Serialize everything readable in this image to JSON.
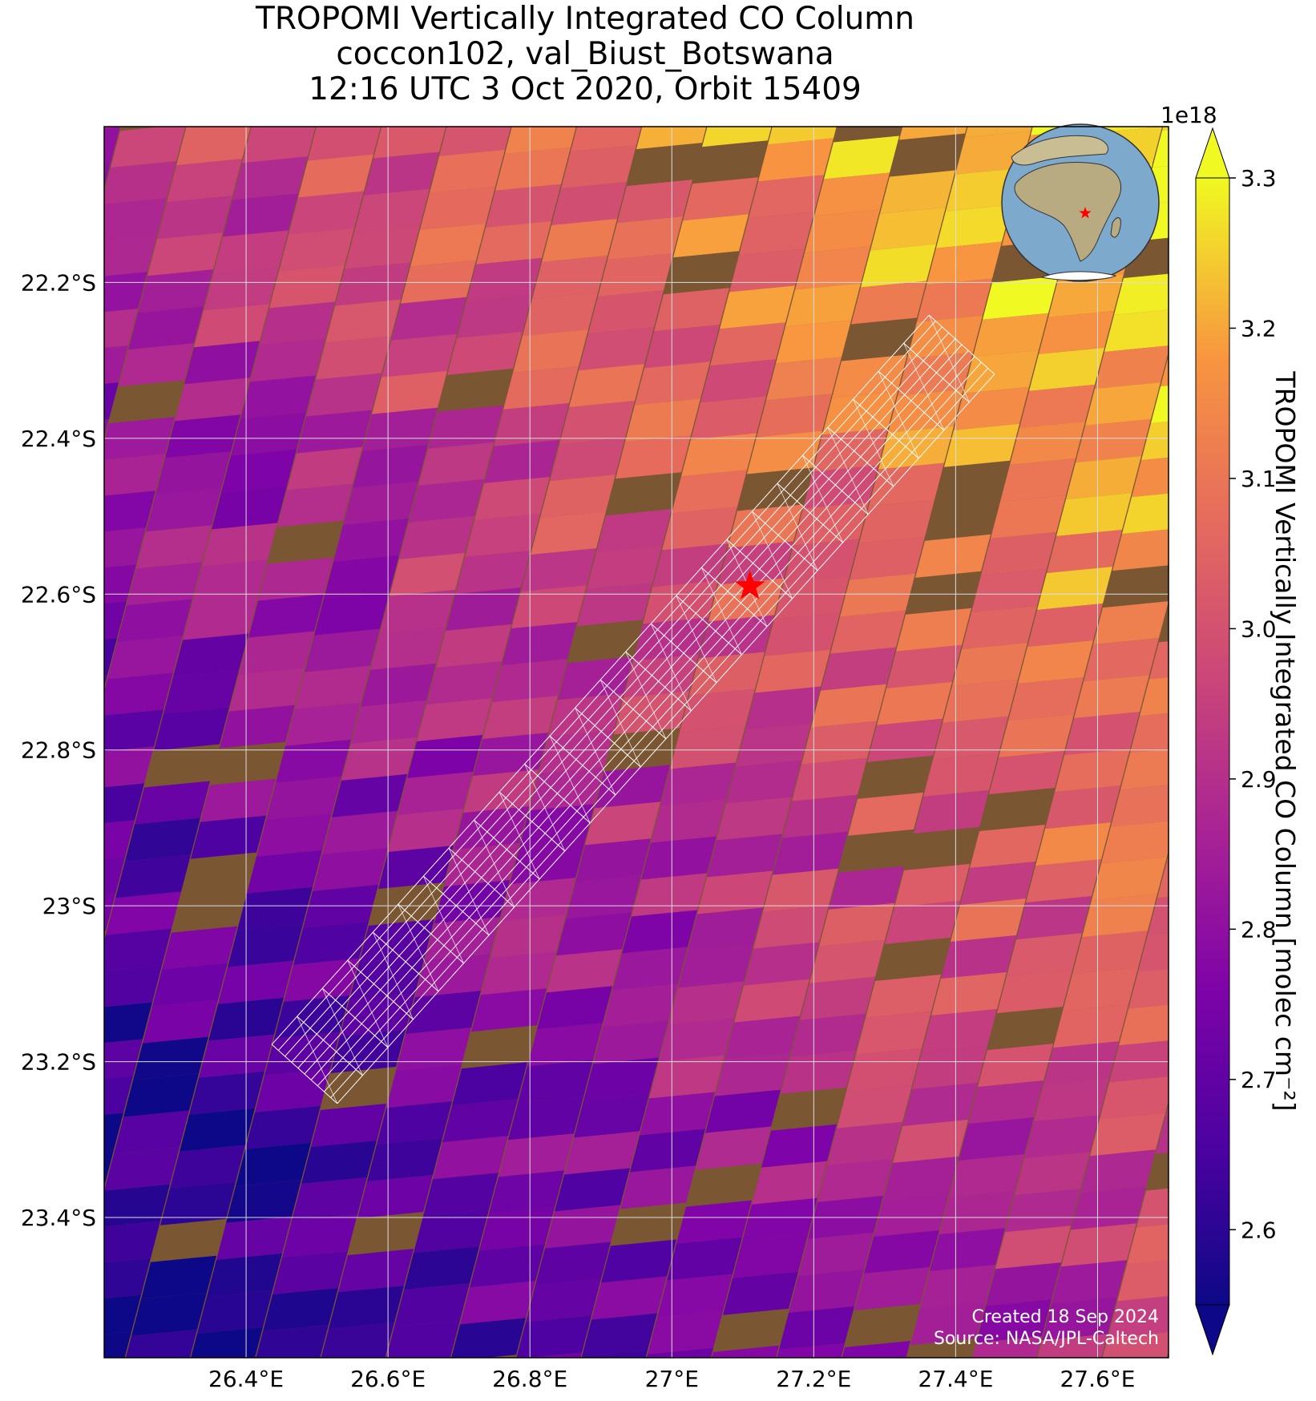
{
  "title": {
    "line1": "TROPOMI Vertically Integrated CO Column",
    "line2": "coccon102, val_Biust_Botswana",
    "line3": "12:16 UTC 3 Oct 2020, Orbit 15409"
  },
  "map": {
    "lon_range": [
      26.2,
      27.7
    ],
    "lat_range": [
      -23.58,
      -22.0
    ],
    "x_ticks": [
      {
        "value": 26.4,
        "label": "26.4°E"
      },
      {
        "value": 26.6,
        "label": "26.6°E"
      },
      {
        "value": 26.8,
        "label": "26.8°E"
      },
      {
        "value": 27.0,
        "label": "27°E"
      },
      {
        "value": 27.2,
        "label": "27.2°E"
      },
      {
        "value": 27.4,
        "label": "27.4°E"
      },
      {
        "value": 27.6,
        "label": "27.6°E"
      }
    ],
    "y_ticks": [
      {
        "value": -22.2,
        "label": "22.2°S"
      },
      {
        "value": -22.4,
        "label": "22.4°S"
      },
      {
        "value": -22.6,
        "label": "22.6°S"
      },
      {
        "value": -22.8,
        "label": "22.8°S"
      },
      {
        "value": -23.0,
        "label": "23°S"
      },
      {
        "value": -23.2,
        "label": "23.2°S"
      },
      {
        "value": -23.4,
        "label": "23.4°S"
      }
    ],
    "site": {
      "name": "val_Biust_Botswana",
      "lon": 27.11,
      "lat": -22.59,
      "marker_color": "#ff0000"
    },
    "gridlines": true
  },
  "colorbar": {
    "multiplier": "1e18",
    "label": "TROPOMI Vertically Integrated CO Column [molec cm⁻²]",
    "range": [
      2.55,
      3.3
    ],
    "ticks": [
      "2.6",
      "2.7",
      "2.8",
      "2.9",
      "3.0",
      "3.1",
      "3.2",
      "3.3"
    ],
    "colormap": "plasma",
    "extend": "both"
  },
  "credit": {
    "line1": "Created 18 Sep 2024",
    "line2": "Source: NASA/JPL-Caltech"
  },
  "colors": {
    "site_marker": "#ff0000",
    "footprint_outline": "#ffffff",
    "gridline": "#dddddd"
  }
}
